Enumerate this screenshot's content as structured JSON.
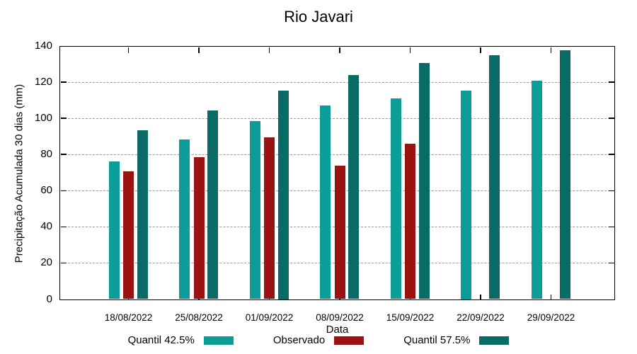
{
  "chart_data": {
    "type": "bar",
    "title": "Rio Javari",
    "xlabel": "Data",
    "ylabel": "Precipitação Acumulada 30 dias (mm)",
    "ylim": [
      0,
      140
    ],
    "yticks": [
      0,
      20,
      40,
      60,
      80,
      100,
      120,
      140
    ],
    "grid": "horizontal dotted gridlines at y ticks (not at 0 or 140)",
    "legend_position": "below chart, horizontal, label left of color swatch",
    "categories": [
      "18/08/2022",
      "25/08/2022",
      "01/09/2022",
      "08/09/2022",
      "15/09/2022",
      "22/09/2022",
      "29/09/2022"
    ],
    "series": [
      {
        "name": "Quantil 42.5%",
        "color": "#0D9D99",
        "values": [
          76,
          88.5,
          98.5,
          107,
          111,
          115.5,
          121
        ]
      },
      {
        "name": "Observado",
        "color": "#9A1212",
        "values": [
          70.5,
          78.5,
          89.5,
          74,
          86,
          null,
          null
        ]
      },
      {
        "name": "Quantil 57.5%",
        "color": "#0A6A66",
        "values": [
          93.5,
          104.5,
          115.5,
          124,
          130.5,
          135,
          137.5
        ]
      }
    ],
    "colors": {
      "axis": "#000000",
      "grid": "#9a9a9a",
      "background": "#ffffff",
      "text": "#000000"
    }
  }
}
